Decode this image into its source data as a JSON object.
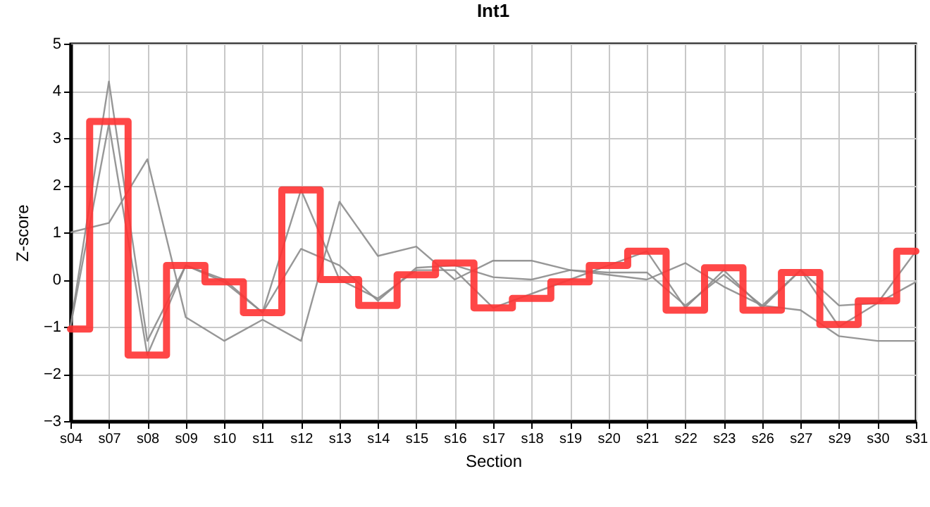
{
  "chart_data": {
    "type": "line",
    "title": "Int1",
    "xlabel": "Section",
    "ylabel": "Z-score",
    "categories": [
      "s04",
      "s07",
      "s08",
      "s09",
      "s10",
      "s11",
      "s12",
      "s13",
      "s14",
      "s15",
      "s16",
      "s17",
      "s18",
      "s19",
      "s20",
      "s21",
      "s22",
      "s23",
      "s26",
      "s27",
      "s29",
      "s30",
      "s31"
    ],
    "series": [
      {
        "color": "#8c8c8c",
        "values": [
          -1.0,
          4.2,
          -1.3,
          0.3,
          0.0,
          -0.7,
          1.9,
          0.0,
          -0.4,
          0.2,
          0.2,
          -0.6,
          -0.3,
          0.0,
          0.3,
          0.6,
          -0.6,
          0.2,
          -0.6,
          0.2,
          -1.0,
          -0.5,
          0.6
        ]
      },
      {
        "color": "#8c8c8c",
        "values": [
          1.0,
          1.2,
          2.55,
          -0.8,
          -1.3,
          -0.85,
          -1.3,
          1.65,
          0.5,
          0.7,
          0.0,
          0.4,
          0.4,
          0.2,
          0.1,
          0.0,
          0.35,
          -0.15,
          -0.55,
          -0.65,
          -1.2,
          -1.3,
          -1.3
        ]
      },
      {
        "color": "#8c8c8c",
        "values": [
          -1.0,
          3.3,
          -1.6,
          0.3,
          -0.05,
          -0.7,
          0.65,
          0.3,
          -0.45,
          0.25,
          0.3,
          0.05,
          0.0,
          0.2,
          0.15,
          0.15,
          -0.55,
          0.1,
          -0.55,
          0.2,
          -0.55,
          -0.5,
          -0.05
        ]
      },
      {
        "type": "step",
        "color": "#ff3333",
        "values": [
          -1.05,
          3.35,
          -1.6,
          0.3,
          -0.05,
          -0.7,
          1.9,
          0.0,
          -0.55,
          0.1,
          0.35,
          -0.6,
          -0.4,
          -0.05,
          0.3,
          0.6,
          -0.65,
          0.25,
          -0.65,
          0.15,
          -0.95,
          -0.45,
          0.6
        ]
      }
    ],
    "ylim": [
      -3,
      5
    ],
    "yticks": [
      -3,
      -2,
      -1,
      0,
      1,
      2,
      3,
      4,
      5
    ],
    "grid": true
  }
}
